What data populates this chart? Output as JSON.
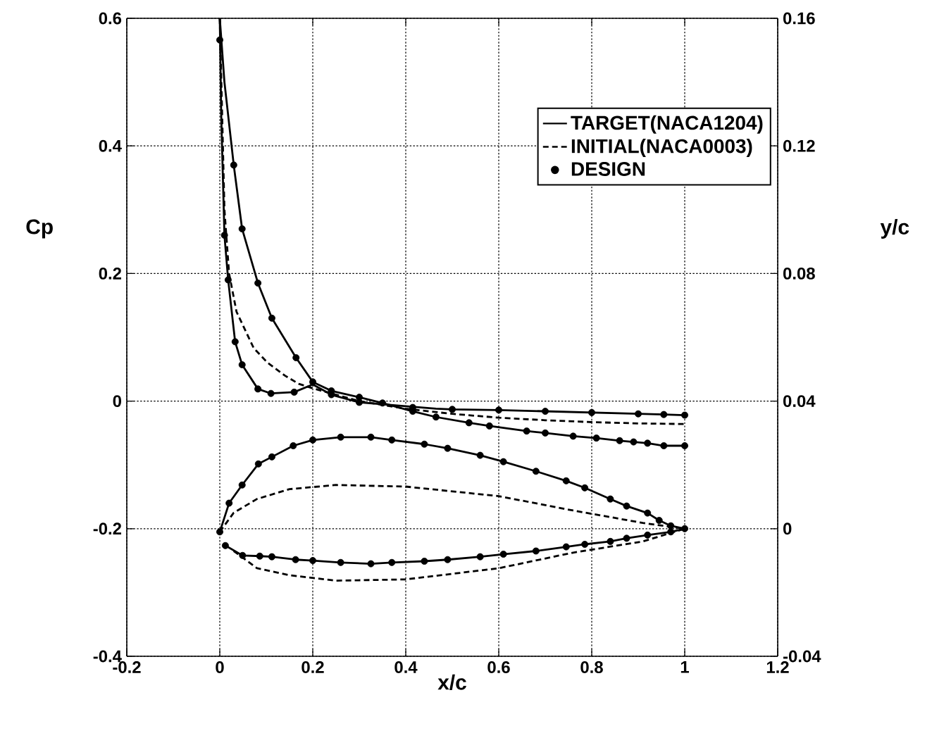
{
  "chart_data": {
    "type": "line",
    "xlabel": "x/c",
    "ylabel": "Cp",
    "y2label": "y/c",
    "xlim": [
      -0.2,
      1.2
    ],
    "xticks": [
      -0.2,
      0,
      0.2,
      0.4,
      0.6,
      0.8,
      1,
      1.2
    ],
    "ylim": [
      -0.4,
      0.6
    ],
    "yticks": [
      -0.4,
      -0.2,
      0,
      0.2,
      0.4,
      0.6
    ],
    "y2lim": [
      -0.04,
      0.16
    ],
    "y2ticks": [
      -0.04,
      0,
      0.04,
      0.08,
      0.12,
      0.16
    ],
    "grid": true,
    "legend": "top right",
    "series": [
      {
        "name": "TARGET(NACA1204)",
        "type": "line",
        "line_style": "solid",
        "marker": "none",
        "color": "#000000",
        "x": [
          0.0,
          0.01,
          0.03,
          0.048,
          0.082,
          0.112,
          0.164,
          0.2,
          0.24,
          0.3,
          0.35,
          0.415,
          0.465,
          0.536,
          0.58,
          0.66,
          0.7,
          0.76,
          0.81,
          0.86,
          0.89,
          0.92,
          0.955,
          1.0
        ],
        "values": [
          0.6,
          0.5,
          0.37,
          0.27,
          0.185,
          0.13,
          0.068,
          0.03,
          0.016,
          0.006,
          -0.003,
          -0.016,
          -0.025,
          -0.034,
          -0.039,
          -0.047,
          -0.05,
          -0.055,
          -0.058,
          -0.062,
          -0.064,
          -0.066,
          -0.07,
          -0.07
        ]
      },
      {
        "type": "line",
        "line_style": "solid",
        "marker": "none",
        "color": "#000000",
        "x": [
          0.0,
          0.003,
          0.01,
          0.018,
          0.033,
          0.048,
          0.082,
          0.11,
          0.16,
          0.2,
          0.24,
          0.3,
          0.4,
          0.465,
          0.5,
          0.6,
          0.7,
          0.8,
          0.9,
          0.955,
          1.0
        ],
        "values": [
          0.6,
          0.45,
          0.26,
          0.19,
          0.093,
          0.057,
          0.019,
          0.012,
          0.014,
          0.026,
          0.01,
          -0.002,
          -0.008,
          -0.012,
          -0.013,
          -0.014,
          -0.016,
          -0.018,
          -0.02,
          -0.021,
          -0.022
        ]
      },
      {
        "name": "INITIAL(NACA0003)",
        "type": "line",
        "line_style": "dashed",
        "marker": "none",
        "color": "#000000",
        "x": [
          0.0,
          0.01,
          0.02,
          0.036,
          0.073,
          0.103,
          0.14,
          0.17,
          0.2,
          0.3,
          0.4,
          0.5,
          0.6,
          0.7,
          0.8,
          0.9,
          1.0
        ],
        "values": [
          0.6,
          0.3,
          0.2,
          0.14,
          0.083,
          0.06,
          0.04,
          0.027,
          0.02,
          0.0,
          -0.012,
          -0.02,
          -0.026,
          -0.03,
          -0.033,
          -0.035,
          -0.036
        ]
      },
      {
        "name": "DESIGN",
        "type": "scatter",
        "marker": "circle",
        "color": "#000000",
        "x": [
          0.0,
          0.03,
          0.048,
          0.082,
          0.112,
          0.164,
          0.2,
          0.24,
          0.3,
          0.35,
          0.415,
          0.465,
          0.536,
          0.58,
          0.66,
          0.7,
          0.76,
          0.81,
          0.86,
          0.89,
          0.92,
          0.955,
          1.0,
          1.0,
          0.955,
          0.9,
          0.8,
          0.7,
          0.6,
          0.5,
          0.415,
          0.3,
          0.24,
          0.16,
          0.11,
          0.082,
          0.048,
          0.033,
          0.018,
          0.01
        ],
        "values": [
          0.566,
          0.37,
          0.27,
          0.185,
          0.13,
          0.068,
          0.03,
          0.016,
          0.006,
          -0.003,
          -0.016,
          -0.025,
          -0.034,
          -0.039,
          -0.047,
          -0.05,
          -0.055,
          -0.058,
          -0.062,
          -0.064,
          -0.066,
          -0.07,
          -0.07,
          -0.022,
          -0.021,
          -0.02,
          -0.018,
          -0.016,
          -0.014,
          -0.013,
          -0.01,
          -0.002,
          0.01,
          0.014,
          0.012,
          0.019,
          0.057,
          0.093,
          0.19,
          0.26
        ]
      },
      {
        "type": "line",
        "axis": "y2",
        "line_style": "solid",
        "marker": "none",
        "color": "#000000",
        "x": [
          0.0,
          0.02,
          0.048,
          0.083,
          0.112,
          0.158,
          0.2,
          0.26,
          0.325,
          0.37,
          0.44,
          0.49,
          0.56,
          0.61,
          0.68,
          0.745,
          0.785,
          0.84,
          0.875,
          0.92,
          0.945,
          0.97,
          1.0
        ],
        "values": [
          -0.001,
          0.008,
          0.0137,
          0.0203,
          0.0225,
          0.026,
          0.0278,
          0.0287,
          0.0287,
          0.0278,
          0.0265,
          0.0252,
          0.023,
          0.021,
          0.018,
          0.015,
          0.0128,
          0.0093,
          0.0071,
          0.0049,
          0.0026,
          0.0009,
          0.0
        ]
      },
      {
        "type": "line",
        "axis": "y2",
        "line_style": "solid",
        "marker": "none",
        "color": "#000000",
        "x": [
          0.012,
          0.049,
          0.086,
          0.112,
          0.163,
          0.2,
          0.26,
          0.325,
          0.37,
          0.44,
          0.49,
          0.56,
          0.61,
          0.68,
          0.745,
          0.785,
          0.84,
          0.875,
          0.92,
          0.97,
          1.0
        ],
        "values": [
          -0.0053,
          -0.0084,
          -0.0086,
          -0.0088,
          -0.0097,
          -0.01,
          -0.0106,
          -0.011,
          -0.0106,
          -0.0102,
          -0.0097,
          -0.0088,
          -0.008,
          -0.007,
          -0.0057,
          -0.0049,
          -0.004,
          -0.003,
          -0.002,
          -0.001,
          0.0
        ]
      },
      {
        "type": "line",
        "axis": "y2",
        "line_style": "dashed",
        "marker": "none",
        "color": "#000000",
        "x": [
          0.0,
          0.03,
          0.08,
          0.15,
          0.25,
          0.4,
          0.6,
          0.76,
          0.91,
          1.0
        ],
        "values": [
          -0.001,
          0.005,
          0.0093,
          0.0124,
          0.0137,
          0.0132,
          0.0102,
          0.0057,
          0.0018,
          0.0
        ]
      },
      {
        "type": "line",
        "axis": "y2",
        "line_style": "dashed",
        "marker": "none",
        "color": "#000000",
        "x": [
          0.03,
          0.08,
          0.15,
          0.25,
          0.4,
          0.6,
          0.76,
          0.91,
          1.0
        ],
        "values": [
          -0.007,
          -0.0124,
          -0.0146,
          -0.0163,
          -0.0159,
          -0.0124,
          -0.0075,
          -0.004,
          0.0
        ]
      },
      {
        "type": "scatter",
        "axis": "y2",
        "marker": "circle",
        "color": "#000000",
        "x": [
          1.0,
          0.97,
          0.945,
          0.92,
          0.875,
          0.84,
          0.785,
          0.745,
          0.68,
          0.61,
          0.56,
          0.49,
          0.44,
          0.37,
          0.325,
          0.26,
          0.2,
          0.158,
          0.112,
          0.083,
          0.048,
          0.02,
          0.0,
          0.012,
          0.049,
          0.086,
          0.112,
          0.163,
          0.2,
          0.26,
          0.325,
          0.37,
          0.44,
          0.49,
          0.56,
          0.61,
          0.68,
          0.745,
          0.785,
          0.84,
          0.875,
          0.92,
          0.97
        ],
        "values": [
          0.0,
          0.0009,
          0.0026,
          0.0049,
          0.0071,
          0.0093,
          0.0128,
          0.015,
          0.018,
          0.021,
          0.023,
          0.0252,
          0.0265,
          0.0278,
          0.0287,
          0.0287,
          0.0278,
          0.026,
          0.0225,
          0.0203,
          0.0137,
          0.008,
          -0.001,
          -0.0053,
          -0.0084,
          -0.0086,
          -0.0088,
          -0.0097,
          -0.01,
          -0.0106,
          -0.011,
          -0.0106,
          -0.0102,
          -0.0097,
          -0.0088,
          -0.008,
          -0.007,
          -0.0057,
          -0.0049,
          -0.004,
          -0.003,
          -0.002,
          -0.001
        ]
      }
    ]
  }
}
